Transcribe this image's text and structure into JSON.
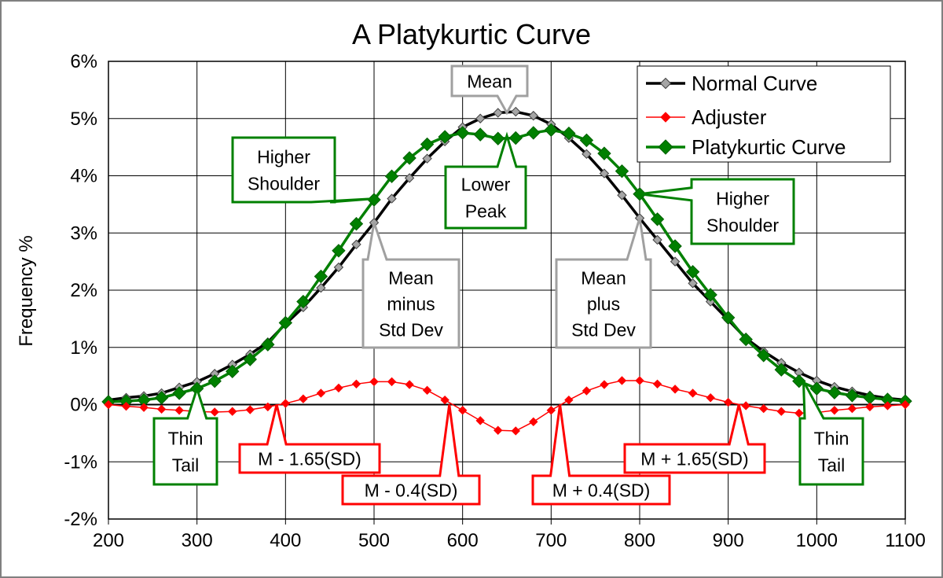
{
  "chart_data": {
    "type": "line",
    "title": "A Platykurtic Curve",
    "xlabel": "",
    "ylabel": "Frequency %",
    "xlim": [
      200,
      1100
    ],
    "ylim": [
      -2,
      6
    ],
    "x_ticks": [
      200,
      300,
      400,
      500,
      600,
      700,
      800,
      900,
      1000,
      1100
    ],
    "y_ticks": [
      -2,
      -1,
      0,
      1,
      2,
      3,
      4,
      5,
      6
    ],
    "y_tick_labels": [
      "-2%",
      "-1%",
      "0%",
      "1%",
      "2%",
      "3%",
      "4%",
      "5%",
      "6%"
    ],
    "grid": true,
    "legend_position": "top-right",
    "x": [
      200,
      220,
      240,
      260,
      280,
      300,
      320,
      340,
      360,
      380,
      400,
      420,
      440,
      460,
      480,
      500,
      520,
      540,
      560,
      580,
      600,
      620,
      640,
      660,
      680,
      700,
      720,
      740,
      760,
      780,
      800,
      820,
      840,
      860,
      880,
      900,
      920,
      940,
      960,
      980,
      1000,
      1020,
      1040,
      1060,
      1080,
      1100
    ],
    "series": [
      {
        "name": "Normal Curve",
        "color": "#000000",
        "marker_color": "#a6a6a6",
        "values": [
          0.08,
          0.12,
          0.15,
          0.2,
          0.3,
          0.4,
          0.54,
          0.7,
          0.88,
          1.09,
          1.41,
          1.7,
          2.04,
          2.4,
          2.8,
          3.18,
          3.6,
          3.96,
          4.3,
          4.6,
          4.85,
          5.0,
          5.1,
          5.12,
          5.05,
          4.9,
          4.66,
          4.38,
          4.04,
          3.66,
          3.26,
          2.88,
          2.5,
          2.12,
          1.8,
          1.48,
          1.16,
          0.93,
          0.73,
          0.56,
          0.42,
          0.31,
          0.23,
          0.16,
          0.11,
          0.08
        ]
      },
      {
        "name": "Adjuster",
        "color": "#ff0000",
        "marker_color": "#ff0000",
        "values": [
          0.0,
          -0.03,
          -0.05,
          -0.08,
          -0.1,
          -0.12,
          -0.13,
          -0.12,
          -0.09,
          -0.04,
          0.02,
          0.1,
          0.2,
          0.29,
          0.36,
          0.4,
          0.4,
          0.35,
          0.25,
          0.08,
          -0.1,
          -0.28,
          -0.45,
          -0.46,
          -0.3,
          -0.1,
          0.08,
          0.24,
          0.35,
          0.42,
          0.42,
          0.36,
          0.27,
          0.2,
          0.12,
          0.04,
          -0.02,
          -0.07,
          -0.12,
          -0.15,
          -0.14,
          -0.1,
          -0.07,
          -0.04,
          -0.02,
          0.0
        ]
      },
      {
        "name": "Platykurtic Curve",
        "color": "#008000",
        "marker_color": "#008000",
        "values": [
          0.05,
          0.06,
          0.08,
          0.12,
          0.2,
          0.28,
          0.41,
          0.58,
          0.79,
          1.05,
          1.43,
          1.8,
          2.24,
          2.69,
          3.16,
          3.58,
          3.99,
          4.31,
          4.55,
          4.68,
          4.75,
          4.72,
          4.65,
          4.66,
          4.75,
          4.8,
          4.74,
          4.62,
          4.39,
          4.08,
          3.68,
          3.24,
          2.77,
          2.32,
          1.92,
          1.52,
          1.14,
          0.86,
          0.61,
          0.41,
          0.28,
          0.21,
          0.16,
          0.12,
          0.09,
          0.06
        ]
      }
    ],
    "annotations": [
      {
        "id": "mean",
        "lines": [
          "Mean"
        ],
        "color": "#a0a0a0",
        "target": [
          650,
          5.1
        ]
      },
      {
        "id": "higher-shoulder-left",
        "lines": [
          "Higher",
          "Shoulder"
        ],
        "color": "#008000",
        "target": [
          500,
          3.6
        ]
      },
      {
        "id": "lower-peak",
        "lines": [
          "Lower",
          "Peak"
        ],
        "color": "#008000",
        "target": [
          650,
          4.7
        ]
      },
      {
        "id": "higher-shoulder-right",
        "lines": [
          "Higher",
          "Shoulder"
        ],
        "color": "#008000",
        "target": [
          800,
          3.68
        ]
      },
      {
        "id": "mean-minus-sd",
        "lines": [
          "Mean",
          "minus",
          "Std Dev"
        ],
        "color": "#a0a0a0",
        "target": [
          500,
          3.18
        ]
      },
      {
        "id": "mean-plus-sd",
        "lines": [
          "Mean",
          "plus",
          "Std Dev"
        ],
        "color": "#a0a0a0",
        "target": [
          800,
          3.26
        ]
      },
      {
        "id": "thin-tail-left",
        "lines": [
          "Thin",
          "Tail"
        ],
        "color": "#008000",
        "target": [
          300,
          0.28
        ]
      },
      {
        "id": "thin-tail-right",
        "lines": [
          "Thin",
          "Tail"
        ],
        "color": "#008000",
        "target": [
          985,
          0.41
        ]
      },
      {
        "id": "m-minus-165sd",
        "lines": [
          "M - 1.65(SD)"
        ],
        "color": "#ff0000",
        "target": [
          390,
          0.0
        ]
      },
      {
        "id": "m-minus-04sd",
        "lines": [
          "M - 0.4(SD)"
        ],
        "color": "#ff0000",
        "target": [
          585,
          0.0
        ]
      },
      {
        "id": "m-plus-04sd",
        "lines": [
          "M + 0.4(SD)"
        ],
        "color": "#ff0000",
        "target": [
          710,
          0.0
        ]
      },
      {
        "id": "m-plus-165sd",
        "lines": [
          "M + 1.65(SD)"
        ],
        "color": "#ff0000",
        "target": [
          912,
          0.0
        ]
      }
    ]
  }
}
